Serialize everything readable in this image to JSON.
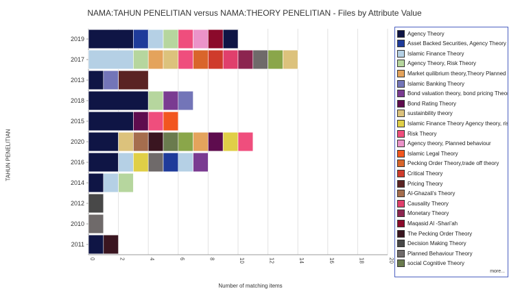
{
  "chart_data": {
    "type": "bar",
    "orientation": "horizontal",
    "stacked": true,
    "title": "NAMA:TAHUN PENELITIAN versus NAMA:THEORY PENELITIAN - Files by Attribute Value",
    "xlabel": "Number of matching items",
    "ylabel": "TAHUN PENELITIAN",
    "xlim": [
      0,
      20
    ],
    "xticks": [
      0,
      2,
      4,
      6,
      8,
      10,
      12,
      14,
      16,
      18,
      20
    ],
    "grid": "vertical",
    "legend_position": "right",
    "legend_more": "more...",
    "legend": [
      {
        "name": "Agency Theory",
        "color": "#0f1545"
      },
      {
        "name": "Asset Backed Securities, Agency Theory",
        "color": "#1f3b9a"
      },
      {
        "name": "Islamic Finance Theory",
        "color": "#b5d0e5"
      },
      {
        "name": "Agency Theory, Risk Theory",
        "color": "#b6d69e"
      },
      {
        "name": "Market quilibrium theory,Theory Planned be",
        "color": "#e4a35c"
      },
      {
        "name": "Islamic Banking Theory",
        "color": "#7375b8"
      },
      {
        "name": "Bond valuation theory, bond pricing Theory",
        "color": "#7a3b91"
      },
      {
        "name": "Bond Rating Theory",
        "color": "#5e0c4e"
      },
      {
        "name": "sustainbility theory",
        "color": "#dcc27c"
      },
      {
        "name": "Islamic Finance Theory  Agency theory, risk",
        "color": "#e0cf47"
      },
      {
        "name": "Risk Theory",
        "color": "#ef4e7d"
      },
      {
        "name": "Agency theory, Planned behaviour",
        "color": "#eb93c9"
      },
      {
        "name": "Islamic Legal Theory",
        "color": "#f2561f"
      },
      {
        "name": "Pecking Order Theory,trade off theory",
        "color": "#d9652b"
      },
      {
        "name": "Critical Theory",
        "color": "#cf3b2c"
      },
      {
        "name": "Pricing Theory",
        "color": "#5a2323"
      },
      {
        "name": "Al-Ghazali's Theory",
        "color": "#a56d4e"
      },
      {
        "name": "Causality Theory",
        "color": "#e03f6c"
      },
      {
        "name": "Monetary Theory",
        "color": "#8c2550"
      },
      {
        "name": "Maqasid Al -Shari'ah",
        "color": "#8b0a2b"
      },
      {
        "name": "The Pecking Order Theory",
        "color": "#3a1520"
      },
      {
        "name": "Decision Making Theory",
        "color": "#484848"
      },
      {
        "name": "Planned Behaviour Theory",
        "color": "#6f6a6a"
      },
      {
        "name": "social Cognitive Theory",
        "color": "#6a7b4e"
      }
    ],
    "categories": [
      "2019",
      "2017",
      "2013",
      "2018",
      "2015",
      "2020",
      "2016",
      "2014",
      "2012",
      "2010",
      "2011"
    ],
    "rows": [
      {
        "year": "2019",
        "segments": [
          {
            "value": 3,
            "color": "#0f1545"
          },
          {
            "value": 1,
            "color": "#1f3b9a"
          },
          {
            "value": 1,
            "color": "#b5d0e5"
          },
          {
            "value": 1,
            "color": "#b6d69e"
          },
          {
            "value": 1,
            "color": "#ef4e7d"
          },
          {
            "value": 1,
            "color": "#eb93c9"
          },
          {
            "value": 1,
            "color": "#8b0a2b"
          },
          {
            "value": 1,
            "color": "#0f1545"
          }
        ]
      },
      {
        "year": "2017",
        "segments": [
          {
            "value": 3,
            "color": "#b5d0e5"
          },
          {
            "value": 1,
            "color": "#b6d69e"
          },
          {
            "value": 1,
            "color": "#e4a35c"
          },
          {
            "value": 1,
            "color": "#dcc27c"
          },
          {
            "value": 1,
            "color": "#ef4e7d"
          },
          {
            "value": 1,
            "color": "#d9652b"
          },
          {
            "value": 1,
            "color": "#cf3b2c"
          },
          {
            "value": 1,
            "color": "#e03f6c"
          },
          {
            "value": 1,
            "color": "#8c2550"
          },
          {
            "value": 1,
            "color": "#6f6a6a"
          },
          {
            "value": 1,
            "color": "#8aa64a"
          },
          {
            "value": 1,
            "color": "#dcc27c"
          }
        ]
      },
      {
        "year": "2013",
        "segments": [
          {
            "value": 1,
            "color": "#0f1545"
          },
          {
            "value": 1,
            "color": "#7375b8"
          },
          {
            "value": 2,
            "color": "#5a2323"
          }
        ]
      },
      {
        "year": "2018",
        "segments": [
          {
            "value": 4,
            "color": "#0f1545"
          },
          {
            "value": 1,
            "color": "#b6d69e"
          },
          {
            "value": 1,
            "color": "#7a3b91"
          },
          {
            "value": 1,
            "color": "#7375b8"
          }
        ]
      },
      {
        "year": "2015",
        "segments": [
          {
            "value": 3,
            "color": "#0f1545"
          },
          {
            "value": 1,
            "color": "#5e0c4e"
          },
          {
            "value": 1,
            "color": "#ef4e7d"
          },
          {
            "value": 1,
            "color": "#f2561f"
          }
        ]
      },
      {
        "year": "2020",
        "segments": [
          {
            "value": 2,
            "color": "#0f1545"
          },
          {
            "value": 1,
            "color": "#dcc27c"
          },
          {
            "value": 1,
            "color": "#a56d4e"
          },
          {
            "value": 1,
            "color": "#3a1520"
          },
          {
            "value": 1,
            "color": "#6a7b4e"
          },
          {
            "value": 1,
            "color": "#8aa64a"
          },
          {
            "value": 1,
            "color": "#e4a35c"
          },
          {
            "value": 1,
            "color": "#5e0c4e"
          },
          {
            "value": 1,
            "color": "#e0cf47"
          },
          {
            "value": 1,
            "color": "#ef4e7d"
          }
        ]
      },
      {
        "year": "2016",
        "segments": [
          {
            "value": 2,
            "color": "#0f1545"
          },
          {
            "value": 1,
            "color": "#b5d0e5"
          },
          {
            "value": 1,
            "color": "#e0cf47"
          },
          {
            "value": 1,
            "color": "#6f6a6a"
          },
          {
            "value": 1,
            "color": "#1f3b9a"
          },
          {
            "value": 1,
            "color": "#b5d0e5"
          },
          {
            "value": 1,
            "color": "#7a3b91"
          }
        ]
      },
      {
        "year": "2014",
        "segments": [
          {
            "value": 1,
            "color": "#0f1545"
          },
          {
            "value": 1,
            "color": "#b5d0e5"
          },
          {
            "value": 1,
            "color": "#b6d69e"
          }
        ]
      },
      {
        "year": "2012",
        "segments": [
          {
            "value": 1,
            "color": "#484848"
          }
        ]
      },
      {
        "year": "2010",
        "segments": [
          {
            "value": 1,
            "color": "#6f6a6a"
          }
        ]
      },
      {
        "year": "2011",
        "segments": [
          {
            "value": 1,
            "color": "#0f1545"
          },
          {
            "value": 1,
            "color": "#3a1520"
          }
        ]
      }
    ]
  }
}
